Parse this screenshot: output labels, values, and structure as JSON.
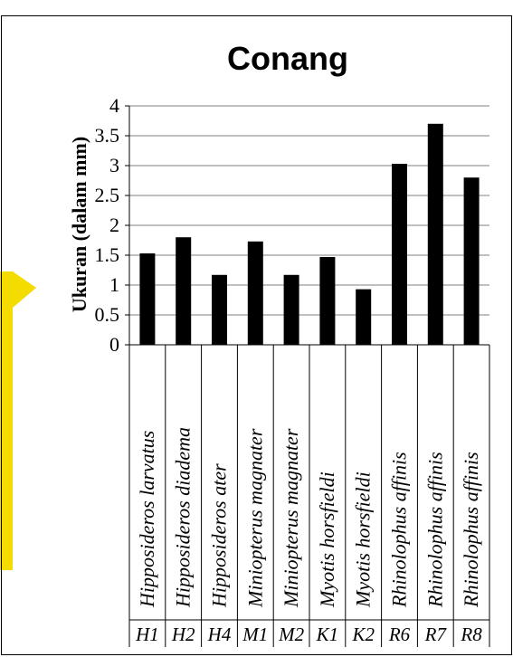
{
  "chart_data": {
    "type": "bar",
    "title": "Conang",
    "xlabel": "",
    "ylabel": "Ukuran (dalam mm)",
    "ylim": [
      0,
      4
    ],
    "yticks": [
      "0",
      "0.5",
      "1",
      "1.5",
      "2",
      "2.5",
      "3",
      "3.5",
      "4"
    ],
    "ytick_values": [
      0,
      0.5,
      1,
      1.5,
      2,
      2.5,
      3,
      3.5,
      4
    ],
    "categories": [
      "Hipposideros larvatus",
      "Hipposideros diadema",
      "Hipposideros ater",
      "Miniopterus magnater",
      "Miniopterus magnater",
      "Myotis horsfieldi",
      "Myotis horsfieldi",
      "Rhinolophus affinis",
      "Rhinolophus affinis",
      "Rhinolophus affinis"
    ],
    "codes": [
      "H1",
      "H2",
      "H4",
      "M1",
      "M2",
      "K1",
      "K2",
      "R6",
      "R7",
      "R8"
    ],
    "values": [
      1.53,
      1.8,
      1.17,
      1.73,
      1.17,
      1.47,
      0.93,
      3.03,
      3.7,
      2.8
    ],
    "bar_color": "#000000",
    "grid": true,
    "legend": "none"
  },
  "colors": {
    "watermark": "#f5dc00",
    "axis": "#000000",
    "grid": "#808080"
  }
}
